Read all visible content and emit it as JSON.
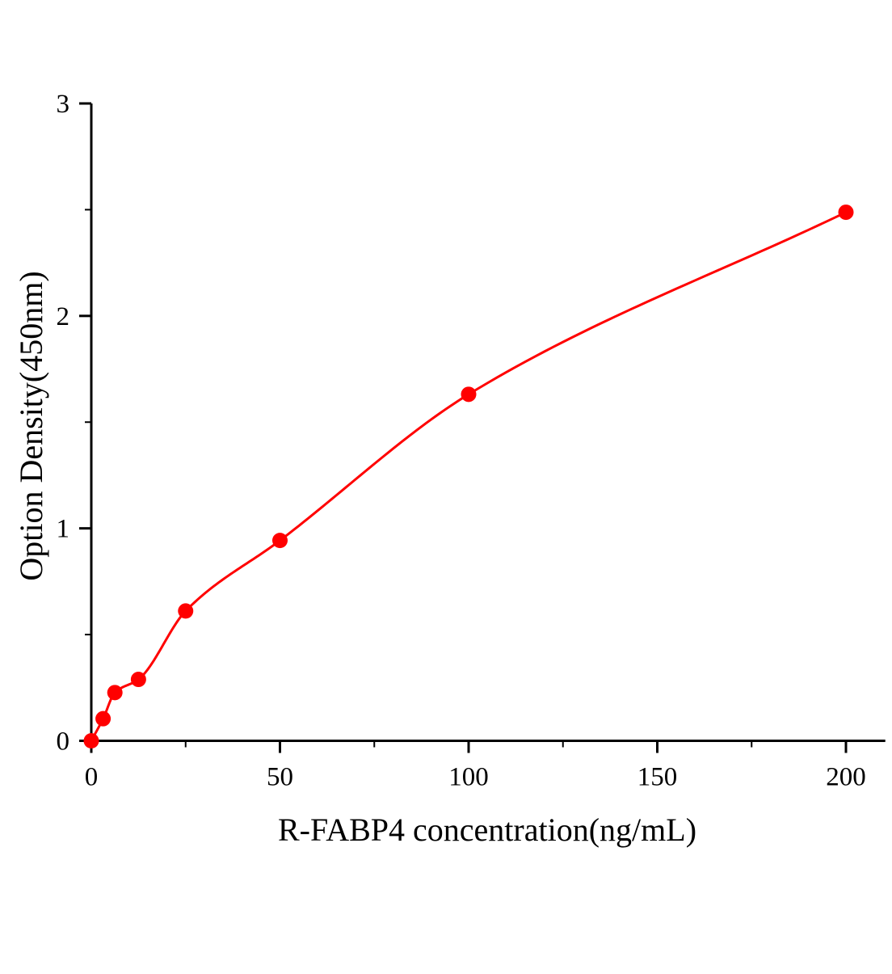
{
  "chart_data": {
    "type": "scatter",
    "title": "",
    "xlabel": "R-FABP4 concentration(ng/mL)",
    "ylabel": "Option Density(450nm)",
    "xlim": [
      0,
      210
    ],
    "ylim": [
      0,
      3
    ],
    "x_ticks": [
      "0",
      "50",
      "100",
      "150",
      "200"
    ],
    "y_ticks": [
      "0",
      "1",
      "2",
      "3"
    ],
    "grid": false,
    "legend": "none",
    "series": [
      {
        "x": [
          0,
          3.125,
          6.25,
          12.5,
          25,
          50,
          100,
          200
        ],
        "y": [
          0.0,
          0.104,
          0.227,
          0.289,
          0.611,
          0.943,
          1.631,
          2.488
        ],
        "color": "#ff0000",
        "fit_curve": true
      }
    ]
  }
}
